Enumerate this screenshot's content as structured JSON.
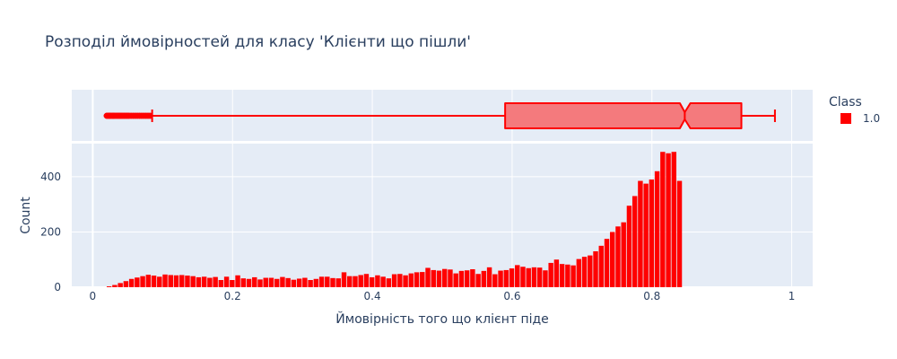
{
  "chart_data": {
    "type": "histogram+box",
    "title": "Розподіл ймовірностей для класу 'Клієнти що пішли'",
    "xlabel": "Ймовірність того що клієнт піде",
    "ylabel": "Count",
    "xlim": [
      -0.03,
      1.03
    ],
    "ylim": [
      0,
      520
    ],
    "x_ticks": [
      0,
      0.2,
      0.4,
      0.6,
      0.8,
      1
    ],
    "x_tick_labels": [
      "0",
      "0.2",
      "0.4",
      "0.6",
      "0.8",
      "1"
    ],
    "y_ticks": [
      0,
      200,
      400
    ],
    "y_tick_labels": [
      "0",
      "200",
      "400"
    ],
    "legend": {
      "title": "Class",
      "entries": [
        {
          "label": "1.0",
          "color": "#ff0000"
        }
      ],
      "placement": "top-right"
    },
    "colors": {
      "bar": "#ff0000",
      "box_fill": "#f47a7d",
      "box_line": "#ff0000",
      "plot_bg": "#e5ecf6",
      "grid": "#ffffff"
    },
    "histogram": {
      "bin_start": 0.02,
      "bin_width": 0.008,
      "counts": [
        3,
        8,
        15,
        22,
        30,
        35,
        40,
        45,
        42,
        38,
        46,
        44,
        43,
        44,
        42,
        40,
        36,
        38,
        34,
        37,
        26,
        38,
        26,
        43,
        32,
        30,
        36,
        28,
        34,
        34,
        30,
        37,
        33,
        27,
        31,
        34,
        26,
        30,
        38,
        38,
        33,
        32,
        54,
        40,
        40,
        44,
        48,
        36,
        43,
        38,
        32,
        47,
        48,
        43,
        50,
        54,
        55,
        70,
        62,
        60,
        66,
        64,
        50,
        59,
        61,
        65,
        48,
        59,
        72,
        47,
        60,
        62,
        68,
        80,
        74,
        69,
        72,
        71,
        61,
        88,
        100,
        84,
        82,
        79,
        102,
        110,
        115,
        130,
        150,
        175,
        200,
        220,
        235,
        295,
        330,
        385,
        375,
        390,
        420,
        490,
        485,
        490,
        385
      ]
    },
    "box": {
      "min": 0.02,
      "lower_fence": 0.085,
      "q1": 0.59,
      "median": 0.847,
      "q3": 0.928,
      "upper_fence": 0.976,
      "notch_low": 0.84,
      "notch_high": 0.855,
      "outliers": [
        0.02,
        0.022,
        0.024,
        0.025,
        0.027,
        0.029,
        0.03,
        0.032,
        0.034,
        0.036,
        0.038,
        0.04,
        0.042,
        0.044,
        0.046,
        0.048,
        0.05,
        0.052,
        0.055,
        0.058,
        0.061,
        0.064,
        0.067,
        0.07,
        0.073,
        0.076,
        0.079,
        0.082
      ]
    }
  }
}
